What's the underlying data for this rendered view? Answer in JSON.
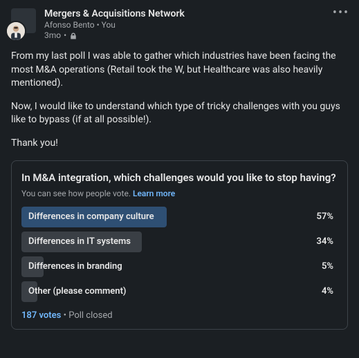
{
  "header": {
    "group_name": "Mergers & Acquisitions Network",
    "author": "Afonso Bento",
    "relation": "You",
    "age": "3mo"
  },
  "body": {
    "p1": "From my last poll I was able to gather which industries have been facing the most M&A operations (Retail took the W, but Healthcare was also heavily mentioned).",
    "p2": "Now, I would like to understand which type of tricky challenges with you guys like to bypass (if at all possible!).",
    "p3": "Thank you!"
  },
  "poll": {
    "question": "In M&A integration, which challenges would you like to stop having?",
    "sub_prefix": "You can see how people vote. ",
    "learn_more": "Learn more",
    "options": [
      {
        "label": "Differences in company culture",
        "pct": "57%",
        "width": 46,
        "selected": true
      },
      {
        "label": "Differences in IT systems",
        "pct": "34%",
        "width": 38,
        "selected": false
      },
      {
        "label": "Differences in branding",
        "pct": "5%",
        "width": 7,
        "selected": false
      },
      {
        "label": "Other (please comment)",
        "pct": "4%",
        "width": 5,
        "selected": false
      }
    ],
    "votes": "187 votes",
    "status": "Poll closed"
  },
  "colors": {
    "bg": "#1b1f23",
    "text": "#e6e6e6",
    "muted": "#a4a7ab",
    "link": "#71b7fb",
    "selected_bar": "#2e4f73",
    "other_bar": "#3a3f45",
    "border": "#3d4349"
  }
}
